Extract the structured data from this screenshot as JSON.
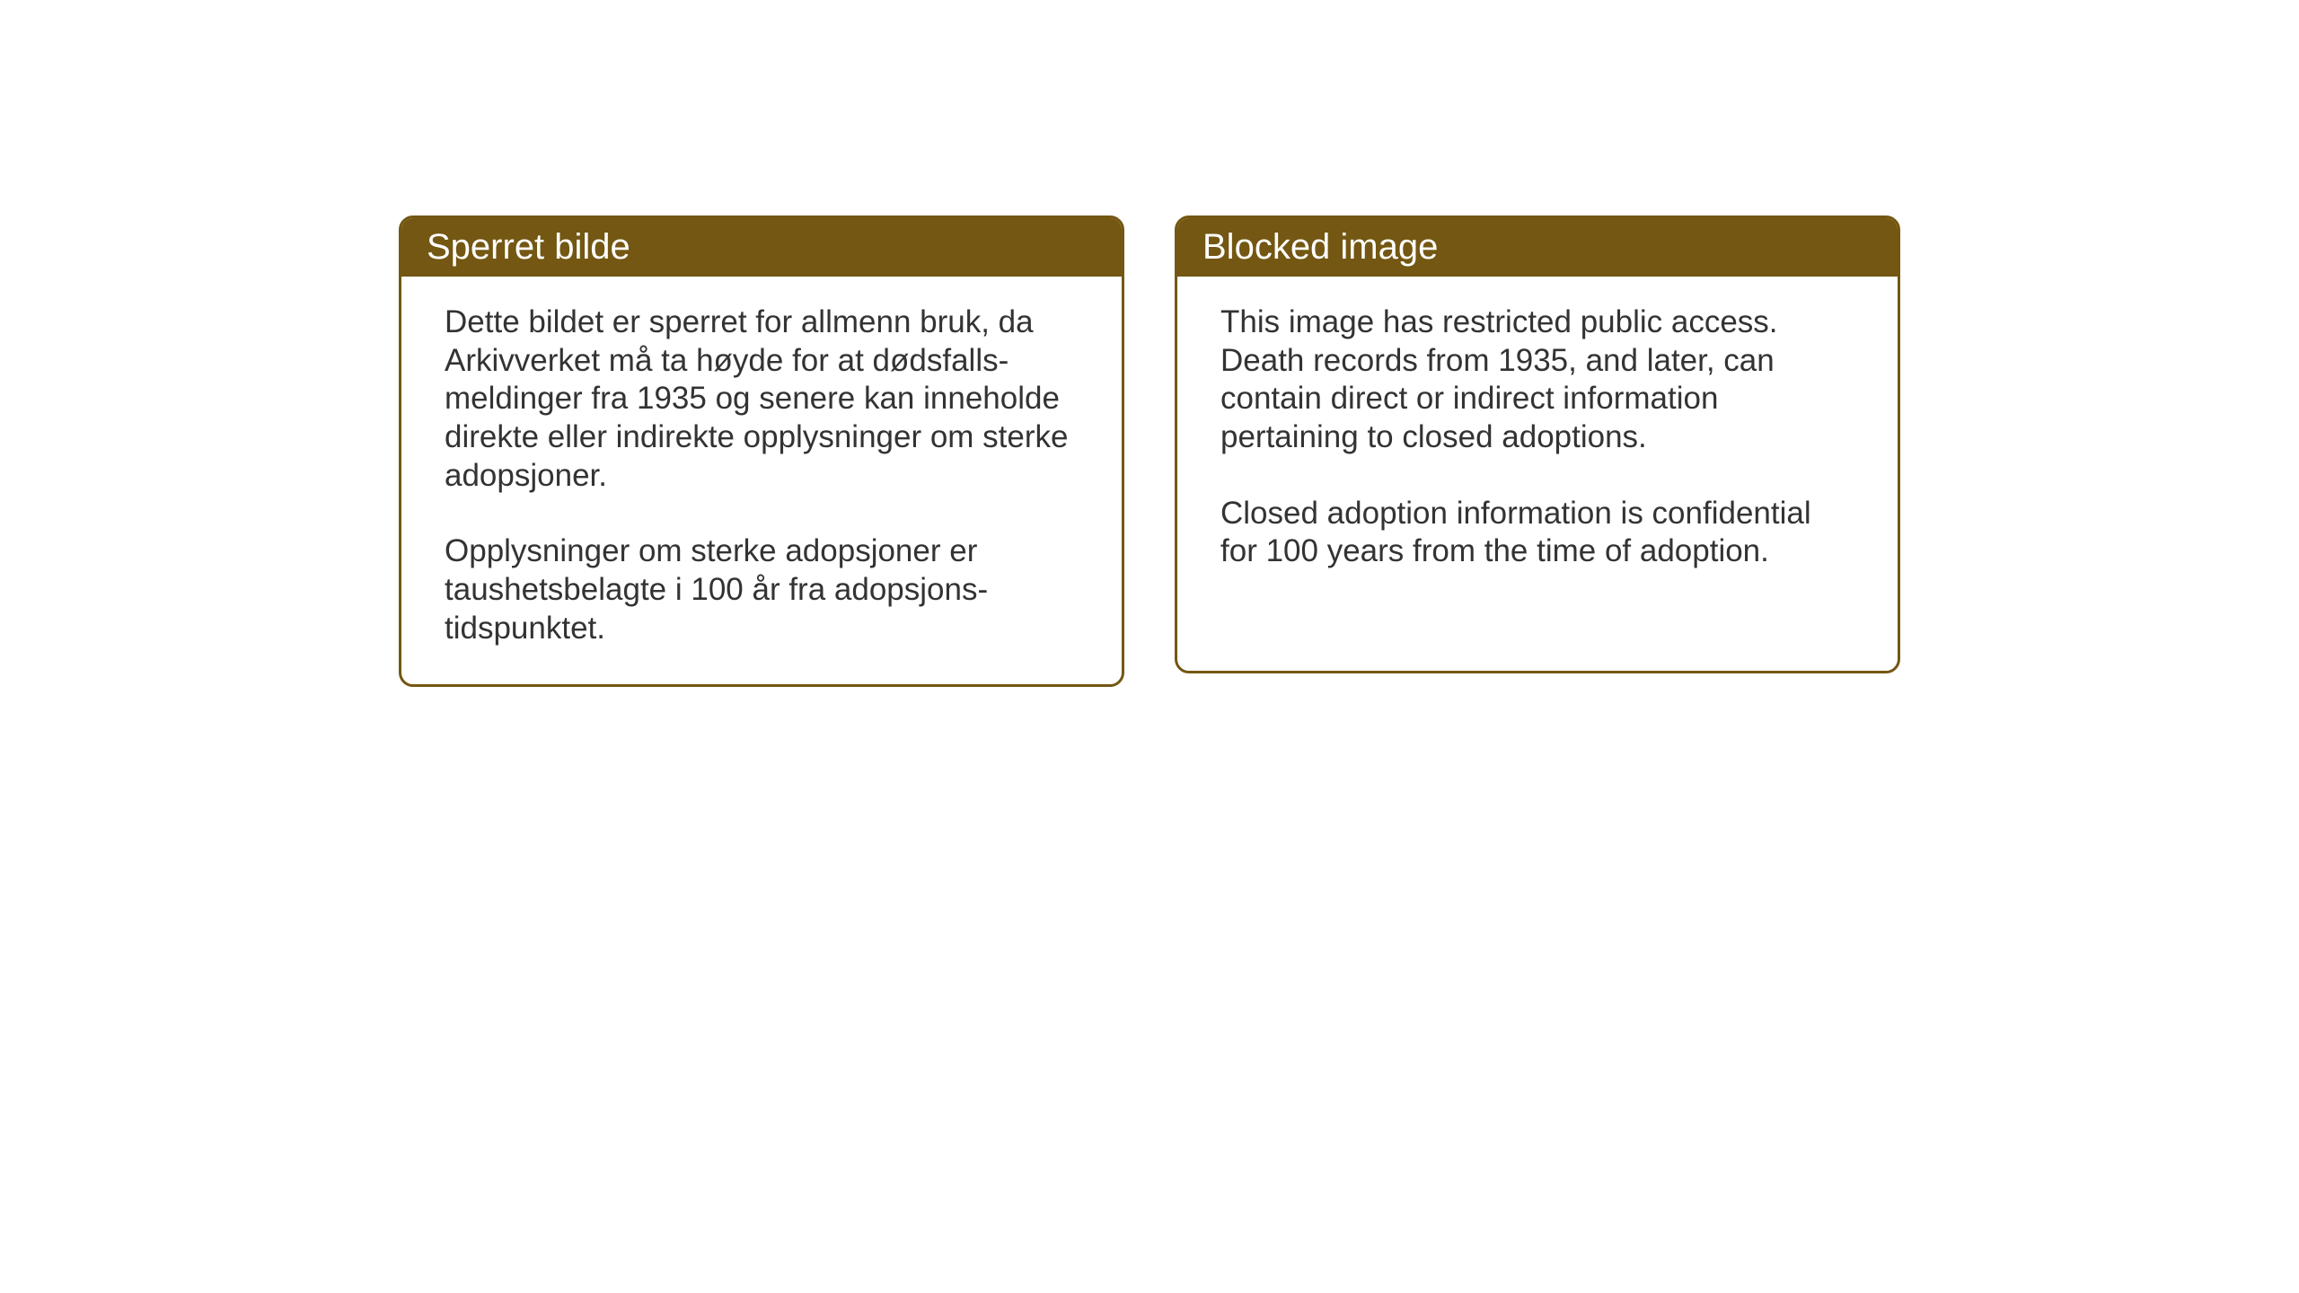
{
  "layout": {
    "background_color": "#ffffff",
    "card_border_color": "#735712",
    "card_border_width": 3,
    "card_border_radius": 16,
    "header_background_color": "#735712",
    "header_text_color": "#ffffff",
    "body_text_color": "#333333",
    "header_font_size": 40,
    "body_font_size": 35
  },
  "cards": {
    "norwegian": {
      "title": "Sperret bilde",
      "paragraph1": "Dette bildet er sperret for allmenn bruk, da Arkivverket må ta høyde for at dødsfalls-meldinger fra 1935 og senere kan inneholde direkte eller indirekte opplysninger om sterke adopsjoner.",
      "paragraph2": "Opplysninger om sterke adopsjoner er taushetsbelagte i 100 år fra adopsjons-tidspunktet."
    },
    "english": {
      "title": "Blocked image",
      "paragraph1": "This image has restricted public access. Death records from 1935, and later, can contain direct or indirect information pertaining to closed adoptions.",
      "paragraph2": "Closed adoption information is confidential for 100 years from the time of adoption."
    }
  }
}
